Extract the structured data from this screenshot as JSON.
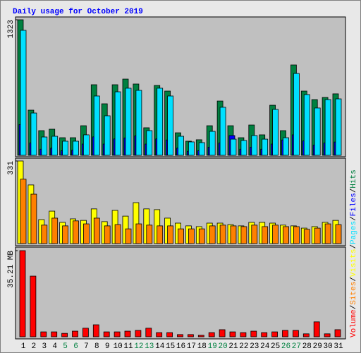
{
  "legend_separator": "/",
  "chart_data": [
    {
      "type": "bar",
      "title": "Daily usage for October 2019",
      "ylim": [
        0,
        1323
      ],
      "yticks": [
        1323
      ],
      "series": [
        {
          "name": "Hits",
          "color": "#008040",
          "values": [
            1323,
            441,
            241,
            255,
            172,
            172,
            289,
            689,
            503,
            689,
            744,
            696,
            269,
            682,
            627,
            220,
            138,
            152,
            289,
            530,
            289,
            172,
            296,
            200,
            489,
            241,
            882,
            627,
            544,
            565,
            600
          ]
        },
        {
          "name": "Files",
          "color": "#0000ff",
          "values": [
            300,
            120,
            60,
            70,
            45,
            50,
            110,
            180,
            110,
            160,
            170,
            190,
            110,
            160,
            150,
            70,
            40,
            45,
            80,
            120,
            193,
            60,
            80,
            60,
            110,
            150,
            200,
            140,
            100,
            120,
            130
          ]
        },
        {
          "name": "Pages",
          "color": "#00e0ff",
          "values": [
            1220,
            413,
            179,
            186,
            138,
            138,
            200,
            579,
            386,
            620,
            655,
            634,
            241,
            655,
            579,
            186,
            131,
            124,
            234,
            469,
            158,
            145,
            193,
            158,
            448,
            172,
            799,
            593,
            462,
            544,
            551
          ]
        }
      ]
    },
    {
      "type": "bar",
      "ylim": [
        0,
        331
      ],
      "yticks": [
        331
      ],
      "series": [
        {
          "name": "Visits",
          "color": "#ffff00",
          "values": [
            331,
            235,
            96,
            130,
            85,
            99,
            93,
            139,
            88,
            133,
            110,
            164,
            139,
            136,
            102,
            82,
            71,
            68,
            82,
            82,
            76,
            71,
            85,
            85,
            82,
            74,
            71,
            62,
            68,
            85,
            93
          ]
        },
        {
          "name": "Sites",
          "color": "#ff8000",
          "values": [
            258,
            198,
            74,
            102,
            71,
            91,
            79,
            102,
            71,
            76,
            59,
            79,
            74,
            71,
            71,
            59,
            59,
            59,
            71,
            74,
            71,
            68,
            74,
            68,
            74,
            68,
            68,
            57,
            62,
            79,
            76
          ]
        }
      ]
    },
    {
      "type": "bar",
      "ylim": [
        0,
        35.21
      ],
      "yticks": [
        {
          "value": 35.21,
          "label": "35.21 MB"
        }
      ],
      "categories": [
        "1",
        "2",
        "3",
        "4",
        "5",
        "6",
        "7",
        "8",
        "9",
        "10",
        "11",
        "12",
        "13",
        "14",
        "15",
        "16",
        "17",
        "18",
        "19",
        "20",
        "21",
        "22",
        "23",
        "24",
        "25",
        "26",
        "27",
        "28",
        "29",
        "30",
        "31"
      ],
      "category_colors": [
        "#000000",
        "#000000",
        "#000000",
        "#000000",
        "#008040",
        "#008040",
        "#000000",
        "#000000",
        "#000000",
        "#000000",
        "#000000",
        "#008040",
        "#008040",
        "#000000",
        "#000000",
        "#000000",
        "#000000",
        "#000000",
        "#008040",
        "#008040",
        "#000000",
        "#000000",
        "#000000",
        "#000000",
        "#000000",
        "#008040",
        "#008040",
        "#000000",
        "#000000",
        "#000000",
        "#000000"
      ],
      "series": [
        {
          "name": "Volume",
          "color": "#ff0000",
          "values": [
            35.21,
            24.8,
            2.0,
            2.0,
            1.4,
            2.3,
            3.5,
            4.9,
            2.0,
            2.0,
            2.3,
            2.6,
            3.5,
            1.7,
            1.7,
            0.9,
            0.9,
            0.6,
            1.7,
            2.9,
            2.0,
            1.7,
            2.3,
            1.7,
            2.0,
            2.6,
            2.6,
            1.2,
            6.1,
            1.2,
            2.9
          ]
        }
      ]
    }
  ]
}
